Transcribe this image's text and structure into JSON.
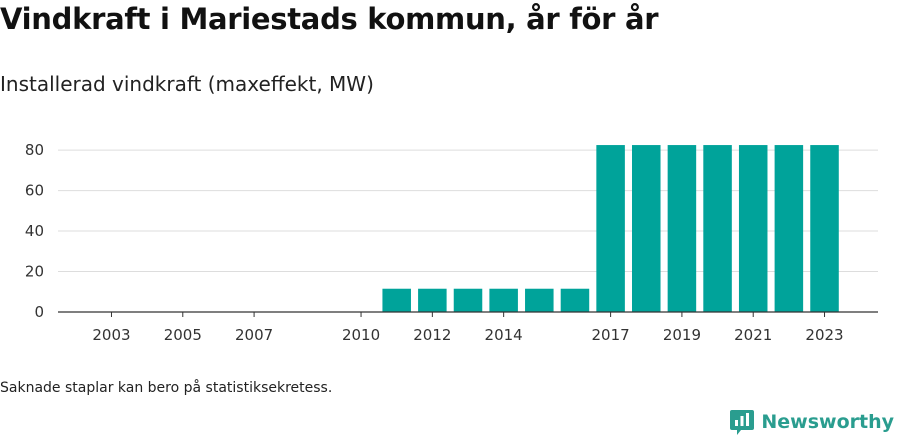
{
  "title": "Vindkraft i Mariestads kommun, år för år",
  "subtitle": "Installerad vindkraft (maxeffekt, MW)",
  "footnote": "Saknade staplar kan bero på statistiksekretess.",
  "brand": "Newsworthy",
  "colors": {
    "bar": "#00a39a",
    "grid": "#dddddd",
    "axis": "#333333",
    "brand": "#2a9d8f"
  },
  "chart_data": {
    "type": "bar",
    "title": "Vindkraft i Mariestads kommun, år för år",
    "subtitle": "Installerad vindkraft (maxeffekt, MW)",
    "xlabel": "",
    "ylabel": "",
    "ylim": [
      0,
      85
    ],
    "yticks": [
      0,
      20,
      40,
      60,
      80
    ],
    "xlim": [
      2001.5,
      2024.5
    ],
    "xticks": [
      2003,
      2005,
      2007,
      2010,
      2012,
      2014,
      2017,
      2019,
      2021,
      2023
    ],
    "grid": true,
    "categories": [
      "2011",
      "2012",
      "2013",
      "2014",
      "2015",
      "2016",
      "2017",
      "2018",
      "2019",
      "2020",
      "2021",
      "2022",
      "2023"
    ],
    "x": [
      2011,
      2012,
      2013,
      2014,
      2015,
      2016,
      2017,
      2018,
      2019,
      2020,
      2021,
      2022,
      2023
    ],
    "values": [
      11.5,
      11.5,
      11.5,
      11.5,
      11.5,
      11.5,
      82.5,
      82.5,
      82.5,
      82.5,
      82.5,
      82.5,
      82.5
    ]
  }
}
